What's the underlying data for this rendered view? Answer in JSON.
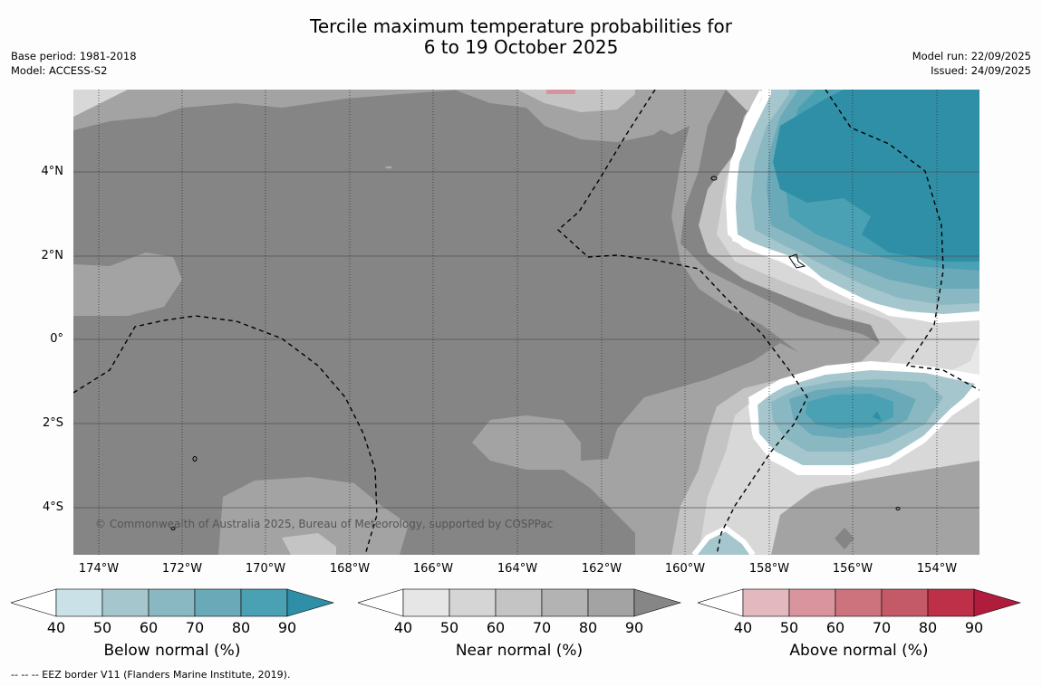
{
  "title_line1": "Tercile maximum temperature probabilities for",
  "title_line2": "6 to 19 October 2025",
  "base_period": "Base period: 1981-2018",
  "model": "Model: ACCESS-S2",
  "model_run": "Model run: 22/09/2025",
  "issued": "Issued: 24/09/2025",
  "copyright": "© Commonwealth of Australia 2025, Bureau of Meteorology, supported by COSPPac",
  "footnote": "--  --  -- EEZ border V11 (Flanders Marine Institute, 2019).",
  "map": {
    "lon_labels": [
      "174°W",
      "172°W",
      "170°W",
      "168°W",
      "166°W",
      "164°W",
      "162°W",
      "160°W",
      "158°W",
      "156°W",
      "154°W"
    ],
    "lat_labels": [
      "4°N",
      "2°N",
      "0°",
      "2°S",
      "4°S"
    ],
    "colors": {
      "base": "#858585",
      "near_light": "#a3a3a3",
      "near_lighter": "#c4c4c4",
      "near_lightest": "#d8d8d8",
      "below_50": "#a6c6cd",
      "below_60": "#8ab8c2",
      "below_70": "#6aa9b8",
      "below_80": "#4aa1b3",
      "below_90": "#2e8fa6",
      "above_60": "#d4959f"
    }
  },
  "legends": [
    {
      "title": "Below normal (%)",
      "ticks": [
        "40",
        "50",
        "60",
        "70",
        "80",
        "90"
      ],
      "colors": [
        "#ffffff",
        "#c9e1e7",
        "#a6c6cd",
        "#8ab8c2",
        "#6aa9b8",
        "#4aa1b3",
        "#2e8fa6"
      ]
    },
    {
      "title": "Near normal (%)",
      "ticks": [
        "40",
        "50",
        "60",
        "70",
        "80",
        "90"
      ],
      "colors": [
        "#ffffff",
        "#e6e6e6",
        "#d5d5d5",
        "#c4c4c4",
        "#b3b3b3",
        "#a3a3a3",
        "#868686"
      ]
    },
    {
      "title": "Above normal (%)",
      "ticks": [
        "40",
        "50",
        "60",
        "70",
        "80",
        "90"
      ],
      "colors": [
        "#ffffff",
        "#e3b8be",
        "#d9949d",
        "#cd737e",
        "#c45a68",
        "#bd3048",
        "#b01c3c"
      ]
    }
  ]
}
